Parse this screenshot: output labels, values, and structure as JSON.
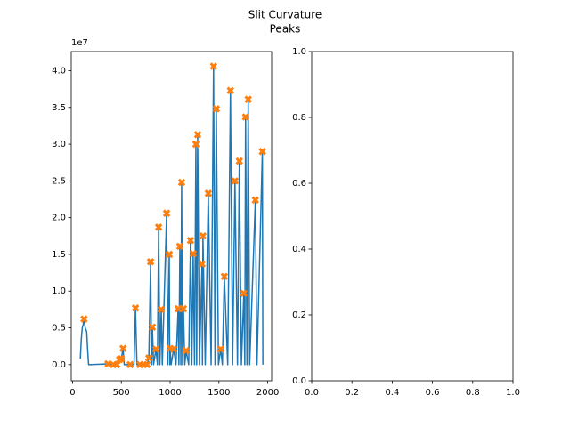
{
  "figure": {
    "title": "Slit Curvature",
    "subtitle": "Peaks"
  },
  "chart_data": [
    {
      "type": "line",
      "xlim": [
        -13,
        2040
      ],
      "ylim": [
        -2200000,
        42600000
      ],
      "xticks": [
        0,
        500,
        1000,
        1500,
        2000
      ],
      "yticks": [
        {
          "value": 0,
          "label": "0.0"
        },
        {
          "value": 5000000,
          "label": "0.5"
        },
        {
          "value": 10000000,
          "label": "1.0"
        },
        {
          "value": 15000000,
          "label": "1.5"
        },
        {
          "value": 20000000,
          "label": "2.0"
        },
        {
          "value": 25000000,
          "label": "2.5"
        },
        {
          "value": 30000000,
          "label": "3.0"
        },
        {
          "value": 35000000,
          "label": "3.5"
        },
        {
          "value": 40000000,
          "label": "4.0"
        }
      ],
      "y_offset_label": "1e7",
      "series": [
        {
          "color": "#1f77b4",
          "marker": "none",
          "x": [
            80,
            90,
            100,
            110,
            118,
            130,
            145,
            155,
            165,
            364,
            418,
            455,
            482,
            500,
            518,
            530,
            591,
            630,
            645,
            660,
            691,
            727,
            764,
            782,
            800,
            810,
            818,
            830,
            855,
            870,
            882,
            895,
            909,
            920,
            964,
            975,
            991,
            996,
            1000,
            1010,
            1036,
            1060,
            1082,
            1090,
            1100,
            1110,
            1118,
            1127,
            1136,
            1150,
            1164,
            1190,
            1209,
            1222,
            1236,
            1250,
            1264,
            1272,
            1282,
            1300,
            1327,
            1331,
            1336,
            1360,
            1391,
            1420,
            1445,
            1460,
            1473,
            1495,
            1518,
            1535,
            1555,
            1590,
            1618,
            1640,
            1664,
            1690,
            1709,
            1730,
            1755,
            1765,
            1773,
            1787,
            1800,
            1815,
            1873,
            1890,
            1945,
            1950
          ],
          "values": [
            800000,
            3500000,
            5000000,
            5500000,
            6200000,
            5000000,
            4500000,
            2000000,
            0,
            100000,
            0,
            0,
            700000,
            800000,
            2200000,
            0,
            0,
            0,
            7700000,
            0,
            0,
            0,
            0,
            900000,
            14000000,
            0,
            5100000,
            0,
            2100000,
            0,
            18700000,
            0,
            7500000,
            0,
            20600000,
            0,
            15000000,
            0,
            2200000,
            0,
            2100000,
            0,
            7600000,
            0,
            16100000,
            0,
            24800000,
            0,
            7600000,
            0,
            1900000,
            0,
            16900000,
            0,
            15100000,
            0,
            30000000,
            0,
            31300000,
            0,
            13700000,
            0,
            17500000,
            0,
            23300000,
            0,
            40600000,
            0,
            34800000,
            0,
            2100000,
            0,
            12000000,
            0,
            37300000,
            0,
            25000000,
            0,
            27700000,
            0,
            9700000,
            0,
            33700000,
            0,
            36100000,
            0,
            22400000,
            0,
            29000000,
            0
          ]
        },
        {
          "color": "#ff7f0e",
          "marker": "X",
          "x": [
            118,
            364,
            418,
            455,
            482,
            500,
            518,
            591,
            645,
            691,
            727,
            764,
            782,
            800,
            818,
            855,
            882,
            909,
            964,
            991,
            1000,
            1036,
            1082,
            1100,
            1118,
            1136,
            1164,
            1209,
            1236,
            1264,
            1282,
            1327,
            1336,
            1391,
            1445,
            1473,
            1518,
            1555,
            1618,
            1664,
            1709,
            1755,
            1773,
            1800,
            1873,
            1945
          ],
          "values": [
            6200000,
            100000,
            0,
            0,
            700000,
            800000,
            2200000,
            0,
            7700000,
            0,
            0,
            0,
            900000,
            14000000,
            5100000,
            2100000,
            18700000,
            7500000,
            20600000,
            15000000,
            2200000,
            2100000,
            7600000,
            16100000,
            24800000,
            7600000,
            1900000,
            16900000,
            15100000,
            30000000,
            31300000,
            13700000,
            17500000,
            23300000,
            40600000,
            34800000,
            2100000,
            12000000,
            37300000,
            25000000,
            27700000,
            9700000,
            33700000,
            36100000,
            22400000,
            29000000
          ]
        }
      ]
    },
    {
      "type": "line",
      "xlim": [
        0,
        1
      ],
      "ylim": [
        0,
        1
      ],
      "xticks": [
        {
          "value": 0,
          "label": "0.0"
        },
        0.2,
        0.4,
        0.6,
        0.8,
        {
          "value": 1,
          "label": "1.0"
        }
      ],
      "yticks": [
        {
          "value": 0,
          "label": "0.0"
        },
        0.2,
        0.4,
        0.6,
        0.8,
        {
          "value": 1,
          "label": "1.0"
        }
      ],
      "series": []
    }
  ]
}
